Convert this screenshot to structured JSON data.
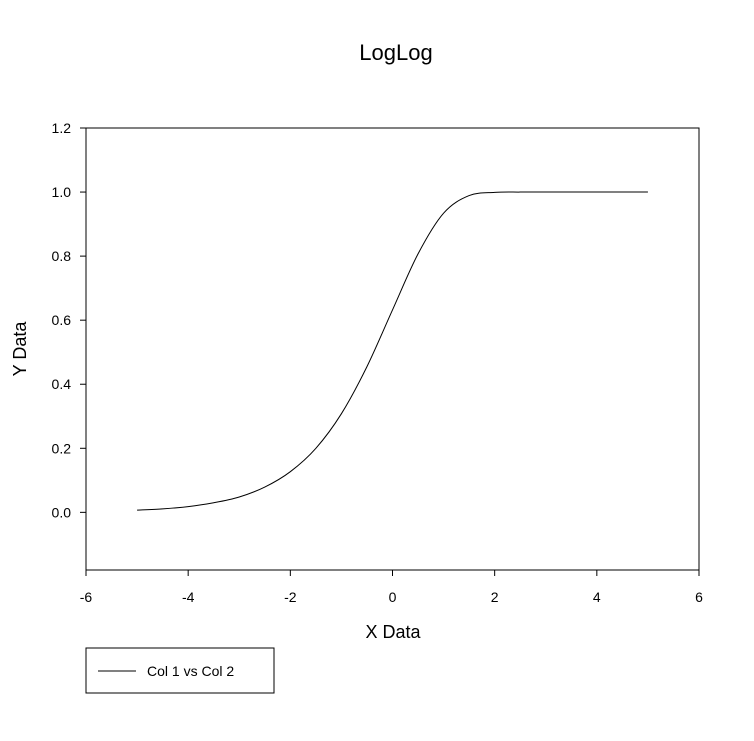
{
  "chart_data": {
    "type": "line",
    "title": "LogLog",
    "xlabel": "X Data",
    "ylabel": "Y Data",
    "xlim": [
      -6,
      6
    ],
    "ylim": [
      -0.18,
      1.2
    ],
    "x_ticks": [
      -6,
      -4,
      -2,
      0,
      2,
      4,
      6
    ],
    "x_tick_labels": [
      "-6",
      "-4",
      "-2",
      "0",
      "2",
      "4",
      "6"
    ],
    "y_ticks": [
      0.0,
      0.2,
      0.4,
      0.6,
      0.8,
      1.0,
      1.2
    ],
    "y_tick_labels": [
      "0.0",
      "0.2",
      "0.4",
      "0.6",
      "0.8",
      "1.0",
      "1.2"
    ],
    "grid": false,
    "legend_position": "bottom-left",
    "line_color": "#000000",
    "series": [
      {
        "name": "Col 1 vs Col 2",
        "x": [
          -5.0,
          -4.5,
          -4.0,
          -3.5,
          -3.0,
          -2.5,
          -2.0,
          -1.5,
          -1.0,
          -0.5,
          0.0,
          0.5,
          1.0,
          1.5,
          2.0,
          2.5,
          3.0,
          3.5,
          4.0,
          4.5,
          5.0
        ],
        "y": [
          0.007,
          0.011,
          0.018,
          0.03,
          0.048,
          0.079,
          0.127,
          0.2,
          0.308,
          0.455,
          0.632,
          0.807,
          0.934,
          0.989,
          0.999,
          1.0,
          1.0,
          1.0,
          1.0,
          1.0,
          1.0
        ]
      }
    ]
  }
}
